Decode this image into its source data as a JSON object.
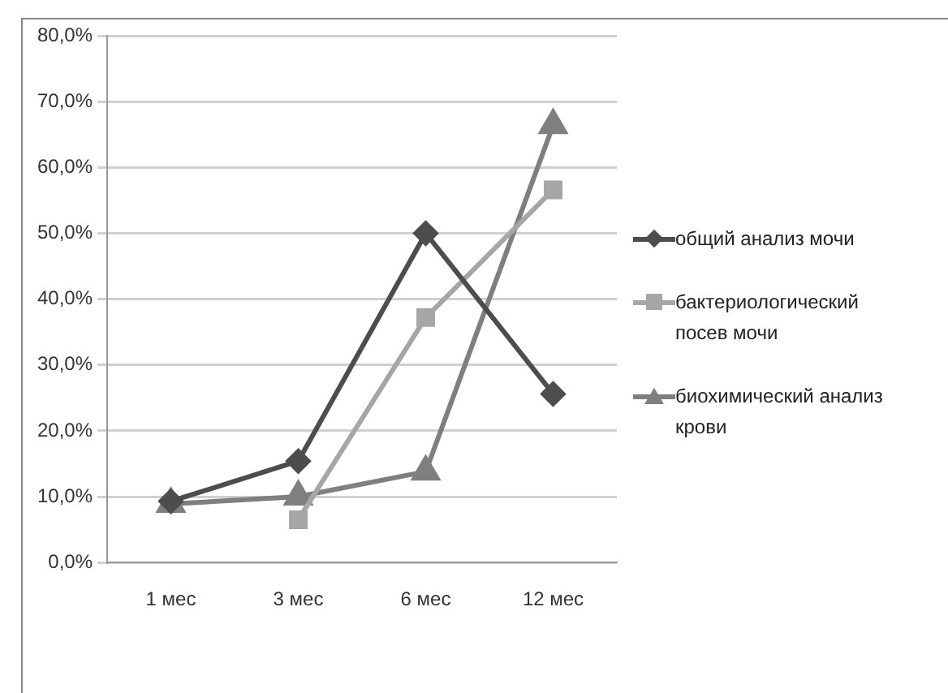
{
  "chart_data": {
    "type": "line",
    "categories": [
      "1 мес",
      "3 мес",
      "6 мес",
      "12 мес"
    ],
    "series": [
      {
        "name": "общий анализ мочи",
        "color": "#4d4d4d",
        "marker": "diamond",
        "values": [
          9.3,
          15.4,
          50.0,
          25.6
        ]
      },
      {
        "name": "бактериологический посев мочи",
        "color": "#a6a6a6",
        "marker": "square",
        "values": [
          null,
          6.5,
          37.2,
          56.6
        ]
      },
      {
        "name": "биохимический анализ крови",
        "color": "#7f7f7f",
        "marker": "triangle",
        "values": [
          8.9,
          10.0,
          13.8,
          66.4
        ]
      }
    ],
    "ylim": [
      0,
      80
    ],
    "yticks": [
      {
        "value": 0,
        "label": "0,0%"
      },
      {
        "value": 10,
        "label": "10,0%"
      },
      {
        "value": 20,
        "label": "20,0%"
      },
      {
        "value": 30,
        "label": "30,0%"
      },
      {
        "value": 40,
        "label": "40,0%"
      },
      {
        "value": 50,
        "label": "50,0%"
      },
      {
        "value": 60,
        "label": "60,0%"
      },
      {
        "value": 70,
        "label": "70,0%"
      },
      {
        "value": 80,
        "label": "80,0%"
      }
    ],
    "grid": "y",
    "legend": "right",
    "line_style": "solid"
  }
}
